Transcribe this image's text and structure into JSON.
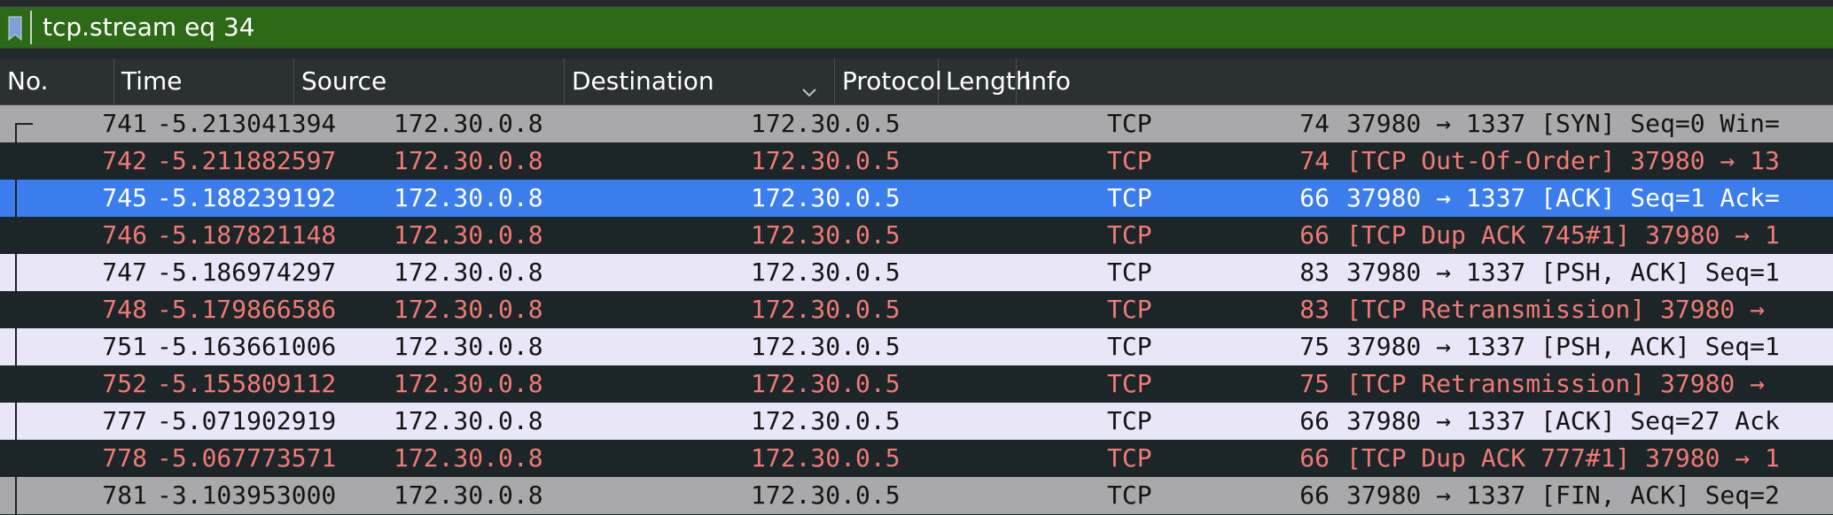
{
  "filter": {
    "value": "tcp.stream eq 34",
    "bookmark_icon": "bookmark-icon"
  },
  "colors": {
    "filter_valid": "#2d6a17",
    "selected_row": "#3b7ded",
    "bad_row_bg": "#1c2528",
    "bad_row_fg": "#f07a74"
  },
  "columns": {
    "no": "No.",
    "time": "Time",
    "source": "Source",
    "destination": "Destination",
    "protocol": "Protocol",
    "length": "Length",
    "info": "Info"
  },
  "packets": [
    {
      "no": "741",
      "time": "-5.213041394",
      "source": "172.30.0.8",
      "destination": "172.30.0.5",
      "protocol": "TCP",
      "length": "74",
      "info": "37980 → 1337 [SYN] Seq=0 Win=",
      "style": "normal"
    },
    {
      "no": "742",
      "time": "-5.211882597",
      "source": "172.30.0.8",
      "destination": "172.30.0.5",
      "protocol": "TCP",
      "length": "74",
      "info": "[TCP Out-Of-Order] 37980 → 13",
      "style": "bad"
    },
    {
      "no": "745",
      "time": "-5.188239192",
      "source": "172.30.0.8",
      "destination": "172.30.0.5",
      "protocol": "TCP",
      "length": "66",
      "info": "37980 → 1337 [ACK] Seq=1 Ack=",
      "style": "selected"
    },
    {
      "no": "746",
      "time": "-5.187821148",
      "source": "172.30.0.8",
      "destination": "172.30.0.5",
      "protocol": "TCP",
      "length": "66",
      "info": "[TCP Dup ACK 745#1] 37980 → 1",
      "style": "bad"
    },
    {
      "no": "747",
      "time": "-5.186974297",
      "source": "172.30.0.8",
      "destination": "172.30.0.5",
      "protocol": "TCP",
      "length": "83",
      "info": "37980 → 1337 [PSH, ACK] Seq=1",
      "style": "light"
    },
    {
      "no": "748",
      "time": "-5.179866586",
      "source": "172.30.0.8",
      "destination": "172.30.0.5",
      "protocol": "TCP",
      "length": "83",
      "info": "[TCP Retransmission] 37980 →",
      "style": "bad"
    },
    {
      "no": "751",
      "time": "-5.163661006",
      "source": "172.30.0.8",
      "destination": "172.30.0.5",
      "protocol": "TCP",
      "length": "75",
      "info": "37980 → 1337 [PSH, ACK] Seq=1",
      "style": "light"
    },
    {
      "no": "752",
      "time": "-5.155809112",
      "source": "172.30.0.8",
      "destination": "172.30.0.5",
      "protocol": "TCP",
      "length": "75",
      "info": "[TCP Retransmission] 37980 →",
      "style": "bad"
    },
    {
      "no": "777",
      "time": "-5.071902919",
      "source": "172.30.0.8",
      "destination": "172.30.0.5",
      "protocol": "TCP",
      "length": "66",
      "info": "37980 → 1337 [ACK] Seq=27 Ack",
      "style": "light"
    },
    {
      "no": "778",
      "time": "-5.067773571",
      "source": "172.30.0.8",
      "destination": "172.30.0.5",
      "protocol": "TCP",
      "length": "66",
      "info": "[TCP Dup ACK 777#1] 37980 → 1",
      "style": "bad"
    },
    {
      "no": "781",
      "time": "-3.103953000",
      "source": "172.30.0.8",
      "destination": "172.30.0.5",
      "protocol": "TCP",
      "length": "66",
      "info": "37980 → 1337 [FIN, ACK] Seq=2",
      "style": "normal"
    }
  ]
}
